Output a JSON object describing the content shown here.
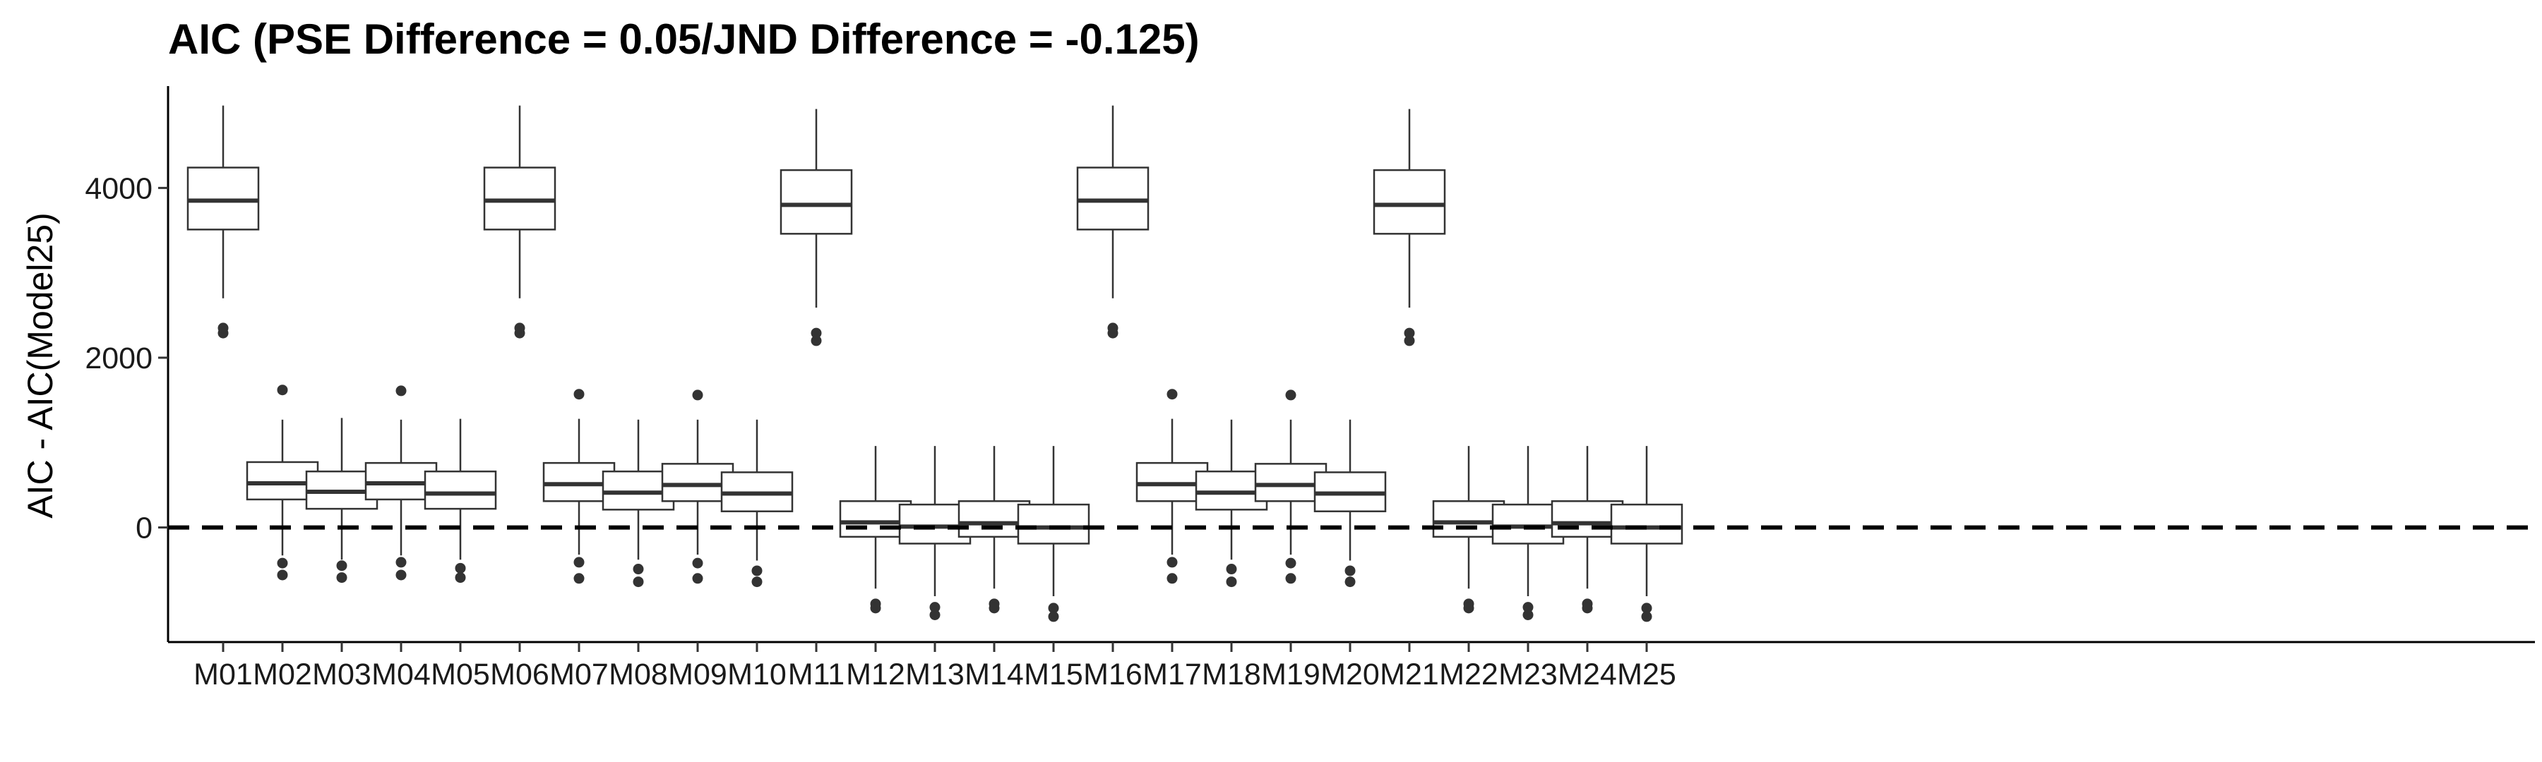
{
  "chart_data": {
    "type": "boxplot",
    "title": "AIC (PSE Difference = 0.05/JND Difference = -0.125)",
    "xlabel": "",
    "ylabel": "AIC - AIC(Model25)",
    "ylim": [
      -1350,
      5200
    ],
    "yticks": [
      0,
      2000,
      4000
    ],
    "reference_line": {
      "y": 0,
      "style": "dashed"
    },
    "grid": false,
    "categories": [
      "M01",
      "M02",
      "M03",
      "M04",
      "M05",
      "M06",
      "M07",
      "M08",
      "M09",
      "M10",
      "M11",
      "M12",
      "M13",
      "M14",
      "M15",
      "M16",
      "M17",
      "M18",
      "M19",
      "M20",
      "M21",
      "M22",
      "M23",
      "M24",
      "M25"
    ],
    "boxes": [
      {
        "q1": 3510,
        "median": 3850,
        "q3": 4240,
        "whisker_low": 2700,
        "whisker_high": 4970,
        "outliers": [
          2290,
          2350
        ]
      },
      {
        "q1": 330,
        "median": 520,
        "q3": 770,
        "whisker_low": -330,
        "whisker_high": 1270,
        "outliers": [
          1620,
          -420,
          -560
        ]
      },
      {
        "q1": 220,
        "median": 420,
        "q3": 660,
        "whisker_low": -380,
        "whisker_high": 1290,
        "outliers": [
          -450,
          -590
        ]
      },
      {
        "q1": 330,
        "median": 520,
        "q3": 760,
        "whisker_low": -330,
        "whisker_high": 1270,
        "outliers": [
          1610,
          -410,
          -560
        ]
      },
      {
        "q1": 220,
        "median": 400,
        "q3": 660,
        "whisker_low": -380,
        "whisker_high": 1280,
        "outliers": [
          -480,
          -590
        ]
      },
      {
        "q1": 3510,
        "median": 3850,
        "q3": 4240,
        "whisker_low": 2700,
        "whisker_high": 4970,
        "outliers": [
          2290,
          2350
        ]
      },
      {
        "q1": 310,
        "median": 510,
        "q3": 760,
        "whisker_low": -320,
        "whisker_high": 1280,
        "outliers": [
          1570,
          -410,
          -600
        ]
      },
      {
        "q1": 210,
        "median": 410,
        "q3": 660,
        "whisker_low": -380,
        "whisker_high": 1270,
        "outliers": [
          -490,
          -640
        ]
      },
      {
        "q1": 310,
        "median": 500,
        "q3": 750,
        "whisker_low": -320,
        "whisker_high": 1270,
        "outliers": [
          1560,
          -420,
          -600
        ]
      },
      {
        "q1": 190,
        "median": 400,
        "q3": 650,
        "whisker_low": -390,
        "whisker_high": 1270,
        "outliers": [
          -510,
          -640
        ]
      },
      {
        "q1": 3460,
        "median": 3800,
        "q3": 4210,
        "whisker_low": 2590,
        "whisker_high": 4930,
        "outliers": [
          2200,
          2290
        ]
      },
      {
        "q1": -110,
        "median": 60,
        "q3": 310,
        "whisker_low": -720,
        "whisker_high": 960,
        "outliers": [
          -900,
          -950
        ]
      },
      {
        "q1": -190,
        "median": 10,
        "q3": 270,
        "whisker_low": -810,
        "whisker_high": 960,
        "outliers": [
          -940,
          -1030
        ]
      },
      {
        "q1": -110,
        "median": 50,
        "q3": 310,
        "whisker_low": -720,
        "whisker_high": 960,
        "outliers": [
          -900,
          -950
        ]
      },
      {
        "q1": -190,
        "median": 0,
        "q3": 270,
        "whisker_low": -810,
        "whisker_high": 960,
        "outliers": [
          -950,
          -1050
        ]
      },
      {
        "q1": 3510,
        "median": 3850,
        "q3": 4240,
        "whisker_low": 2700,
        "whisker_high": 4970,
        "outliers": [
          2290,
          2350
        ]
      },
      {
        "q1": 310,
        "median": 510,
        "q3": 760,
        "whisker_low": -320,
        "whisker_high": 1280,
        "outliers": [
          1570,
          -410,
          -600
        ]
      },
      {
        "q1": 210,
        "median": 410,
        "q3": 660,
        "whisker_low": -380,
        "whisker_high": 1270,
        "outliers": [
          -490,
          -640
        ]
      },
      {
        "q1": 310,
        "median": 500,
        "q3": 750,
        "whisker_low": -320,
        "whisker_high": 1270,
        "outliers": [
          1560,
          -420,
          -600
        ]
      },
      {
        "q1": 190,
        "median": 400,
        "q3": 650,
        "whisker_low": -390,
        "whisker_high": 1270,
        "outliers": [
          -510,
          -640
        ]
      },
      {
        "q1": 3460,
        "median": 3800,
        "q3": 4210,
        "whisker_low": 2590,
        "whisker_high": 4930,
        "outliers": [
          2200,
          2290
        ]
      },
      {
        "q1": -110,
        "median": 60,
        "q3": 310,
        "whisker_low": -720,
        "whisker_high": 960,
        "outliers": [
          -900,
          -950
        ]
      },
      {
        "q1": -190,
        "median": 10,
        "q3": 270,
        "whisker_low": -810,
        "whisker_high": 960,
        "outliers": [
          -940,
          -1030
        ]
      },
      {
        "q1": -110,
        "median": 50,
        "q3": 310,
        "whisker_low": -720,
        "whisker_high": 960,
        "outliers": [
          -900,
          -950
        ]
      },
      {
        "q1": -190,
        "median": 0,
        "q3": 270,
        "whisker_low": -810,
        "whisker_high": 960,
        "outliers": [
          -950,
          -1050
        ]
      }
    ]
  }
}
